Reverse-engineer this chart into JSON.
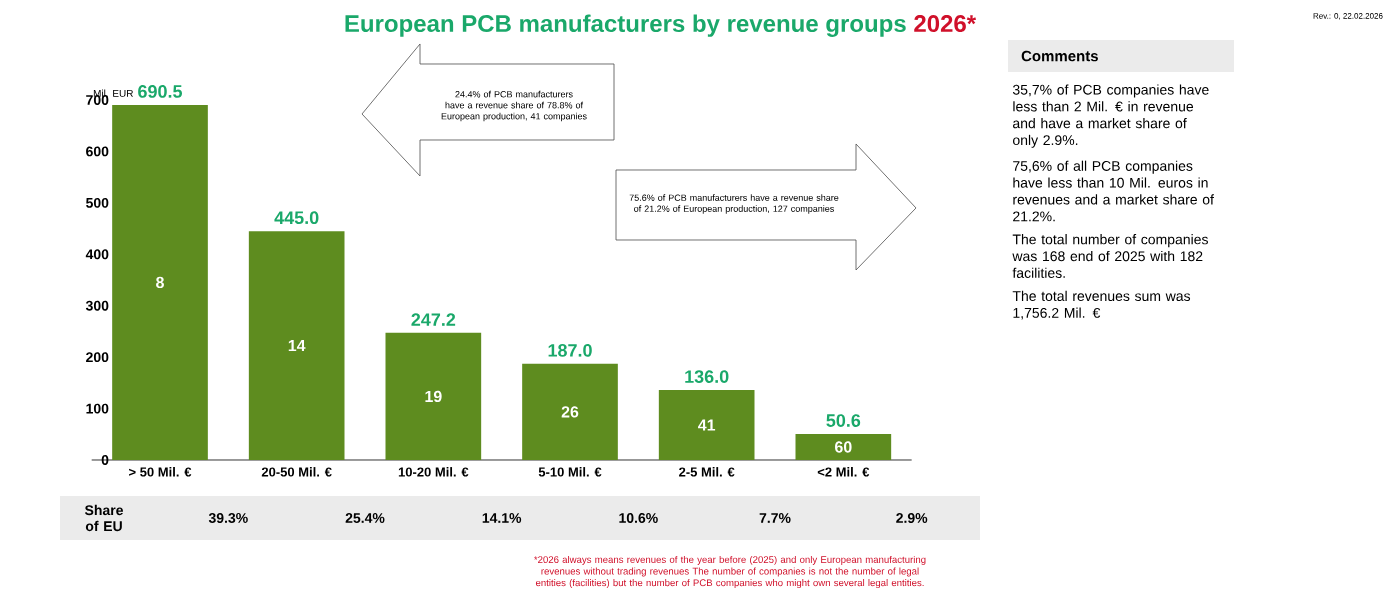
{
  "chart_data": {
    "type": "bar",
    "title": "European PCB manufacturers by revenue groups",
    "subtitle": "2026*",
    "ylabel": "Mil. EUR",
    "categories": [
      "> 50 Mil. €",
      "20-50 Mil. €",
      "10-20 Mil. €",
      "5-10 Mil. €",
      "2-5 Mil. €",
      "<2 Mil. €"
    ],
    "values": [
      690.5,
      445.0,
      247.2,
      187.0,
      136.0,
      50.6
    ],
    "color": "#5e8c1f",
    "ylim": [
      0,
      700
    ],
    "yticks": [
      0,
      100,
      200,
      300,
      400,
      500,
      600,
      700
    ],
    "value_labels": [
      "690.5",
      "445.0",
      "247.2",
      "187.0",
      "136.0",
      "50.6"
    ],
    "grid": false,
    "annotations": [
      "Rev.: 0, 22.02.2026",
      "24.4% of PCB manufacturers have a revenue share of 78.8% of European production, 41 companies",
      "75.6% of PCB manufacturers have a revenue share of 21.2% of European production, 127 companies",
      "Share of EU",
      "Comments",
      "35,7% of PCB companies have less than 2 Mil. € in revenue and have a market share of only 2.9%.",
      "75,6% of all PCB companies have less than 10 Mil. euros in revenues and a market share of 21.2%.",
      "The total number of companies was 168 end of 2025 with 182 facilities.",
      "The total revenues sum was 1,756.2 Mil. €",
      "*2026 always means revenues of the year before (2025) and only European manufacturing revenues without trading revenues The number of companies is not the number of legal entities (facilities) but the number of PCB companies who might own several legal entities.",
      "8",
      "14",
      "19",
      "26",
      "41",
      "60",
      "39.3%",
      "25.4%",
      "14.1%",
      "10.6%",
      "7.7%",
      "2.9%"
    ]
  }
}
